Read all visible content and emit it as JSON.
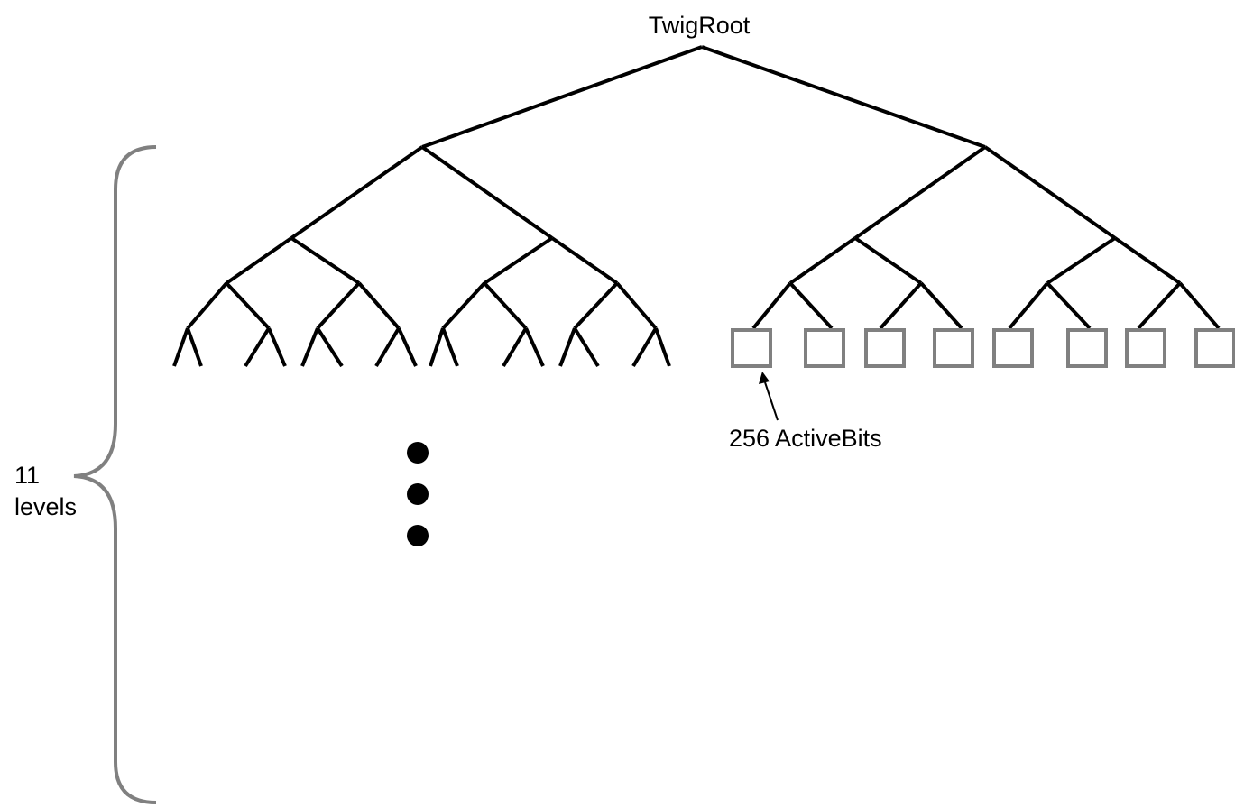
{
  "root_label": "TwigRoot",
  "leaf_label": "256 ActiveBits",
  "levels_label": {
    "line1": "11",
    "line2": "levels"
  },
  "colors": {
    "tree": "#000000",
    "leaf_box": "#808080",
    "brace": "#808080",
    "ellipsis": "#000000"
  }
}
